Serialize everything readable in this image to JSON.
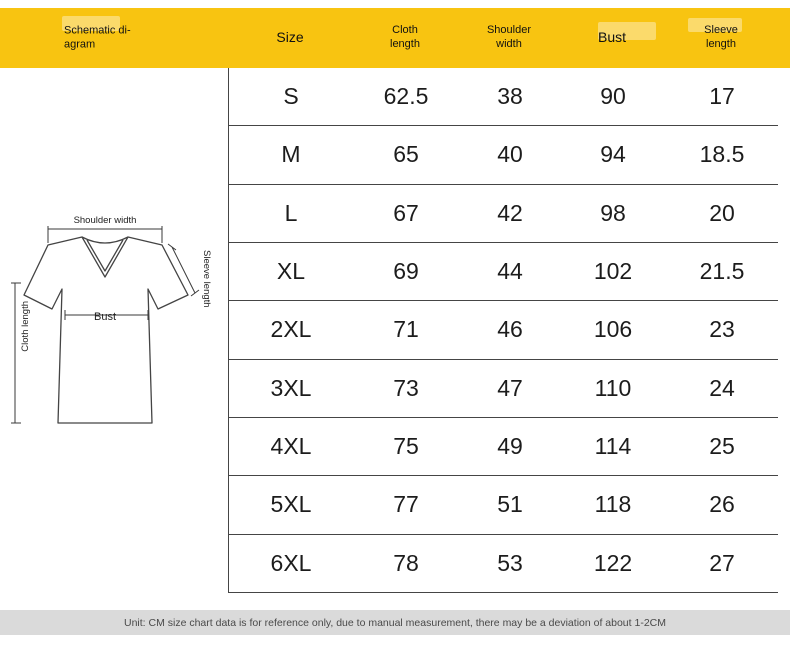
{
  "colors": {
    "header_bg": "#F8C411",
    "footer_bg": "#DADADA",
    "grid_line": "#454545"
  },
  "header": {
    "schematic_label": "Schematic di-agram",
    "columns": [
      "Size",
      "Cloth length",
      "Shoulder width",
      "Bust",
      "Sleeve length"
    ]
  },
  "diagram": {
    "labels": {
      "shoulder_width": "Shoulder width",
      "sleeve_length": "Sleeve length",
      "bust": "Bust",
      "cloth_length": "Cloth length"
    }
  },
  "table": {
    "rows": [
      [
        "S",
        "62.5",
        "38",
        "90",
        "17"
      ],
      [
        "M",
        "65",
        "40",
        "94",
        "18.5"
      ],
      [
        "L",
        "67",
        "42",
        "98",
        "20"
      ],
      [
        "XL",
        "69",
        "44",
        "102",
        "21.5"
      ],
      [
        "2XL",
        "71",
        "46",
        "106",
        "23"
      ],
      [
        "3XL",
        "73",
        "47",
        "110",
        "24"
      ],
      [
        "4XL",
        "75",
        "49",
        "114",
        "25"
      ],
      [
        "5XL",
        "77",
        "51",
        "118",
        "26"
      ],
      [
        "6XL",
        "78",
        "53",
        "122",
        "27"
      ]
    ]
  },
  "footer": {
    "note": "Unit: CM size chart data is for reference only, due to manual measurement, there may be a deviation of about 1-2CM"
  },
  "chart_data": {
    "type": "table",
    "unit": "CM",
    "columns": [
      "Size",
      "Cloth length",
      "Shoulder width",
      "Bust",
      "Sleeve length"
    ],
    "rows": [
      [
        "S",
        62.5,
        38,
        90,
        17
      ],
      [
        "M",
        65,
        40,
        94,
        18.5
      ],
      [
        "L",
        67,
        42,
        98,
        20
      ],
      [
        "XL",
        69,
        44,
        102,
        21.5
      ],
      [
        "2XL",
        71,
        46,
        106,
        23
      ],
      [
        "3XL",
        73,
        47,
        110,
        24
      ],
      [
        "4XL",
        75,
        49,
        114,
        25
      ],
      [
        "5XL",
        77,
        51,
        118,
        26
      ],
      [
        "6XL",
        78,
        53,
        122,
        27
      ]
    ],
    "note": "Unit: CM size chart data is for reference only, due to manual measurement, there may be a deviation of about 1-2CM"
  }
}
